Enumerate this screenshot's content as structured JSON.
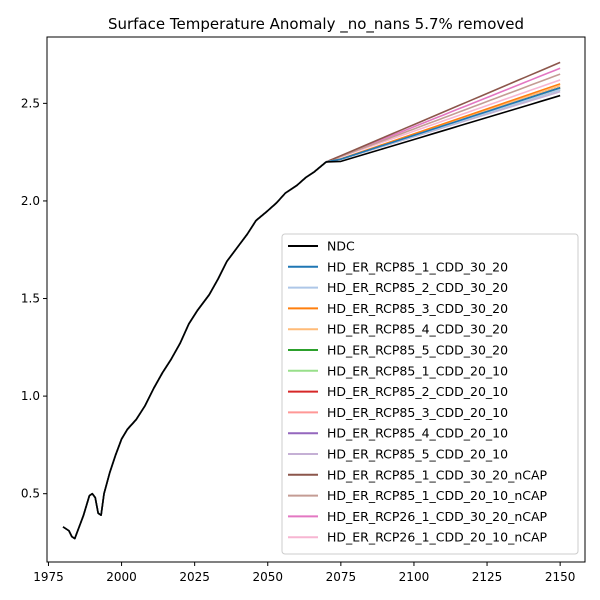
{
  "chart_data": {
    "type": "line",
    "title": "Surface Temperature Anomaly _no_nans 5.7% removed",
    "xlabel": "",
    "ylabel": "",
    "xlim": [
      1974.5,
      2158.5
    ],
    "ylim": [
      0.15,
      2.84
    ],
    "xticks": [
      1975,
      2000,
      2025,
      2050,
      2075,
      2100,
      2125,
      2150
    ],
    "xtick_labels": [
      "1975",
      "2000",
      "2025",
      "2050",
      "2075",
      "2100",
      "2125",
      "2150"
    ],
    "yticks": [
      0.5,
      1.0,
      1.5,
      2.0,
      2.5
    ],
    "ytick_labels": [
      "0.5",
      "1.0",
      "1.5",
      "2.0",
      "2.5"
    ],
    "grid": false,
    "legend_position": "lower-right",
    "historical": {
      "x": [
        1980,
        1982,
        1983,
        1984,
        1985,
        1986,
        1987,
        1988,
        1989,
        1990,
        1991,
        1992,
        1993,
        1994,
        1996,
        1998,
        2000,
        2002,
        2005,
        2008,
        2011,
        2014,
        2017,
        2020,
        2023,
        2026,
        2030,
        2033,
        2036,
        2040,
        2043,
        2046,
        2050,
        2053,
        2056,
        2060,
        2063,
        2066,
        2070
      ],
      "y": [
        0.33,
        0.31,
        0.28,
        0.27,
        0.31,
        0.35,
        0.39,
        0.44,
        0.49,
        0.5,
        0.48,
        0.4,
        0.39,
        0.5,
        0.61,
        0.7,
        0.78,
        0.83,
        0.88,
        0.95,
        1.04,
        1.12,
        1.19,
        1.27,
        1.37,
        1.44,
        1.52,
        1.6,
        1.69,
        1.77,
        1.83,
        1.9,
        1.95,
        1.99,
        2.04,
        2.08,
        2.12,
        2.15,
        2.2
      ]
    },
    "shape": {
      "x": [
        2070,
        2075,
        2080,
        2083,
        2085,
        2088,
        2090,
        2093,
        2096,
        2098,
        2100,
        2103,
        2106,
        2108,
        2110,
        2113,
        2116,
        2118,
        2120,
        2123,
        2126,
        2128,
        2130,
        2133,
        2136,
        2138,
        2140,
        2143,
        2146,
        2148,
        2150
      ],
      "t": [
        0,
        0.0625,
        0.125,
        0.1625,
        0.1875,
        0.225,
        0.25,
        0.2875,
        0.325,
        0.35,
        0.375,
        0.4125,
        0.45,
        0.475,
        0.5,
        0.5375,
        0.575,
        0.6,
        0.625,
        0.6625,
        0.7,
        0.725,
        0.75,
        0.7875,
        0.825,
        0.85,
        0.875,
        0.9125,
        0.95,
        0.975,
        1.0
      ]
    },
    "series": [
      {
        "name": "NDC",
        "color": "#000000",
        "start": 2.18,
        "end": 2.54
      },
      {
        "name": "HD_ER_RCP85_1_CDD_30_20",
        "color": "#1f77b4",
        "start": 2.19,
        "end": 2.58
      },
      {
        "name": "HD_ER_RCP85_2_CDD_30_20",
        "color": "#aec7e8",
        "start": 2.19,
        "end": 2.57
      },
      {
        "name": "HD_ER_RCP85_3_CDD_30_20",
        "color": "#ff7f0e",
        "start": 2.19,
        "end": 2.6
      },
      {
        "name": "HD_ER_RCP85_4_CDD_30_20",
        "color": "#ffbb78",
        "start": 2.19,
        "end": 2.59
      },
      {
        "name": "HD_ER_RCP85_5_CDD_30_20",
        "color": "#2ca02c",
        "start": 2.19,
        "end": 2.58
      },
      {
        "name": "HD_ER_RCP85_1_CDD_20_10",
        "color": "#98df8a",
        "start": 2.19,
        "end": 2.57
      },
      {
        "name": "HD_ER_RCP85_2_CDD_20_10",
        "color": "#d62728",
        "start": 2.19,
        "end": 2.58
      },
      {
        "name": "HD_ER_RCP85_3_CDD_20_10",
        "color": "#ff9896",
        "start": 2.19,
        "end": 2.58
      },
      {
        "name": "HD_ER_RCP85_4_CDD_20_10",
        "color": "#9467bd",
        "start": 2.19,
        "end": 2.57
      },
      {
        "name": "HD_ER_RCP85_5_CDD_20_10",
        "color": "#c5b0d5",
        "start": 2.19,
        "end": 2.56
      },
      {
        "name": "HD_ER_RCP85_1_CDD_30_20_nCAP",
        "color": "#8c564b",
        "start": 2.2,
        "end": 2.71
      },
      {
        "name": "HD_ER_RCP85_1_CDD_20_10_nCAP",
        "color": "#c49c94",
        "start": 2.2,
        "end": 2.65
      },
      {
        "name": "HD_ER_RCP26_1_CDD_30_20_nCAP",
        "color": "#e377c2",
        "start": 2.2,
        "end": 2.68
      },
      {
        "name": "HD_ER_RCP26_1_CDD_20_10_nCAP",
        "color": "#f7b6d2",
        "start": 2.2,
        "end": 2.62
      }
    ]
  }
}
